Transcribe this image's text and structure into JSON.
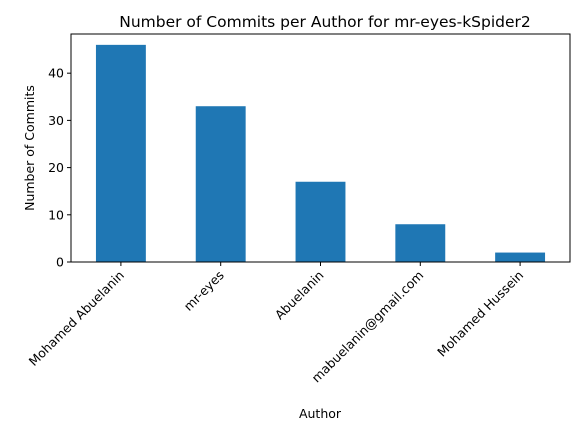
{
  "chart_data": {
    "type": "bar",
    "title": "Number of Commits per Author for mr-eyes-kSpider2",
    "xlabel": "Author",
    "ylabel": "Number of Commits",
    "categories": [
      "Mohamed Abuelanin",
      "mr-eyes",
      "Abuelanin",
      "mabuelanin@gmail.com",
      "Mohamed Hussein"
    ],
    "values": [
      46,
      33,
      17,
      8,
      2
    ],
    "ylim": [
      0,
      48.3
    ],
    "yticks": [
      0,
      10,
      20,
      30,
      40
    ],
    "grid": false,
    "legend": "none",
    "bar_color": "#1f77b4"
  }
}
